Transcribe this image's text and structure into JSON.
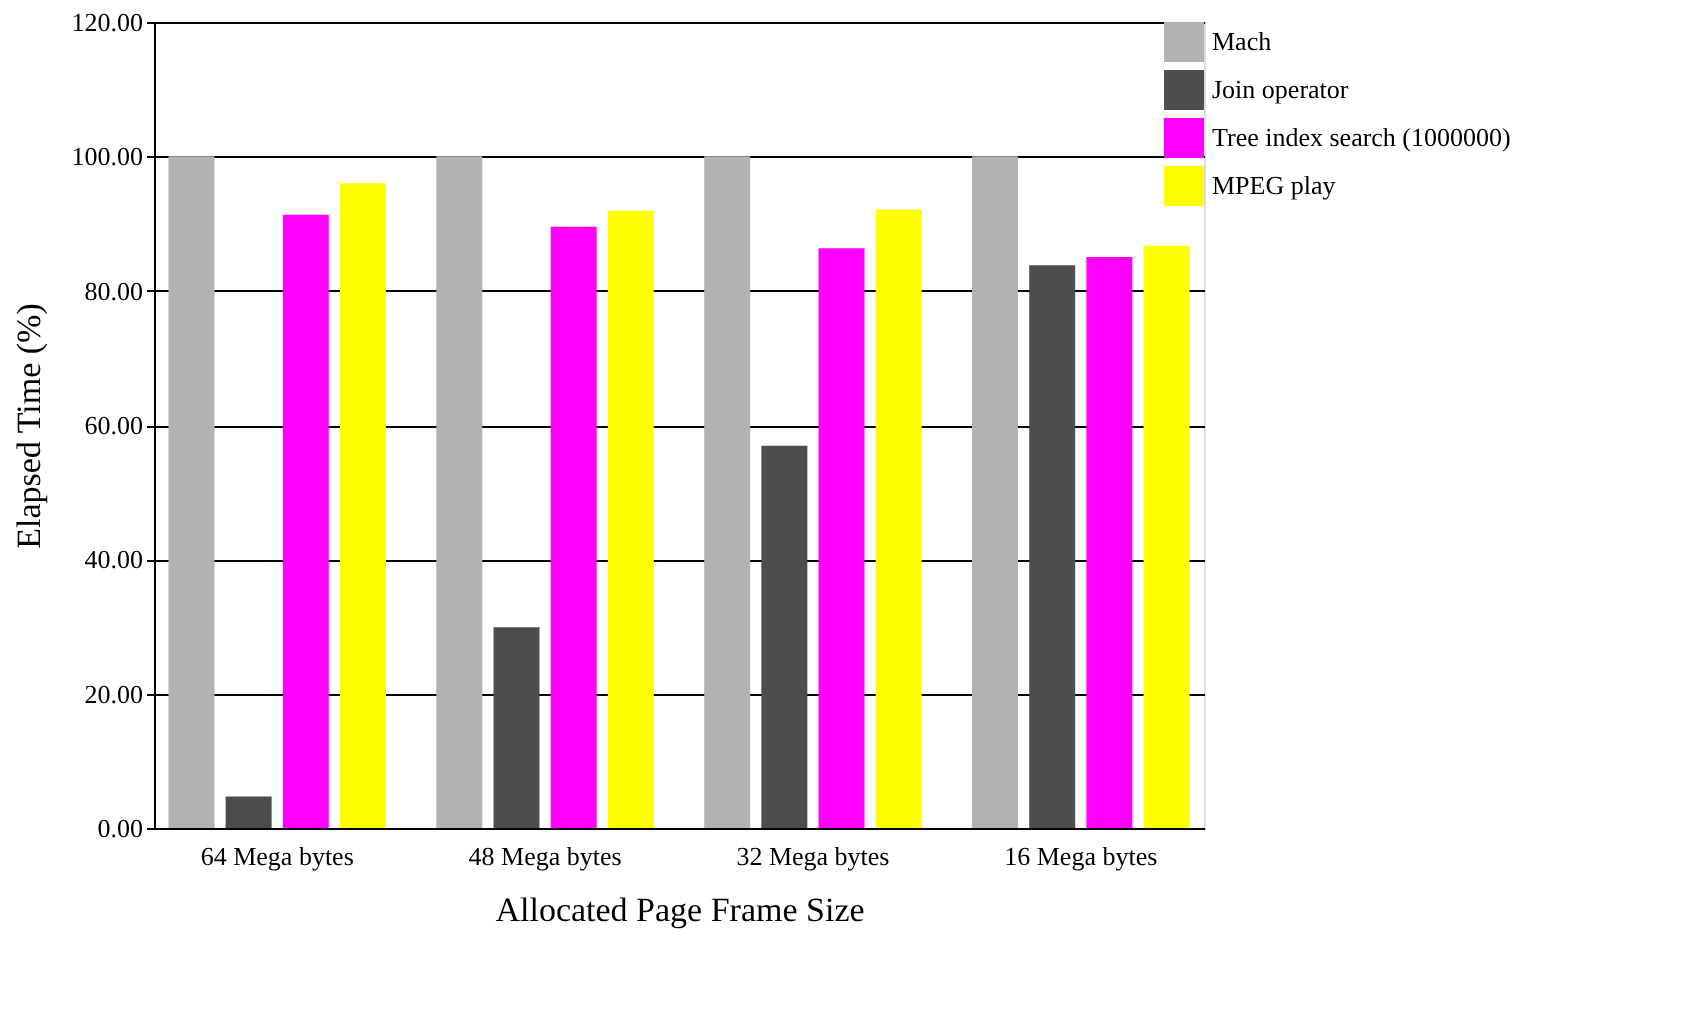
{
  "chart_data": {
    "type": "bar",
    "xlabel": "Allocated Page Frame Size",
    "ylabel": "Elapsed Time (%)",
    "categories": [
      "64 Mega bytes",
      "48 Mega bytes",
      "32 Mega bytes",
      "16 Mega bytes"
    ],
    "series": [
      {
        "name": "Mach",
        "color": "#b2b2b2",
        "values": [
          100,
          100,
          100,
          100
        ]
      },
      {
        "name": "Join operator",
        "color": "#4d4d4d",
        "values": [
          4.7,
          29.9,
          56.9,
          83.8
        ]
      },
      {
        "name": "Tree index search (1000000)",
        "color": "#ff00ff",
        "values": [
          91.3,
          89.5,
          86.3,
          85.0
        ]
      },
      {
        "name": "MPEG play",
        "color": "#ffff00",
        "values": [
          96.0,
          91.9,
          92.1,
          86.7
        ]
      }
    ],
    "ylim": [
      0,
      120
    ],
    "yticks": [
      {
        "value": 0,
        "label": "0.00"
      },
      {
        "value": 20,
        "label": "20.00"
      },
      {
        "value": 40,
        "label": "40.00"
      },
      {
        "value": 60,
        "label": "60.00"
      },
      {
        "value": 80,
        "label": "80.00"
      },
      {
        "value": 100,
        "label": "100.00"
      },
      {
        "value": 120,
        "label": "120.00"
      }
    ],
    "grid": "y",
    "legend": "top right"
  }
}
